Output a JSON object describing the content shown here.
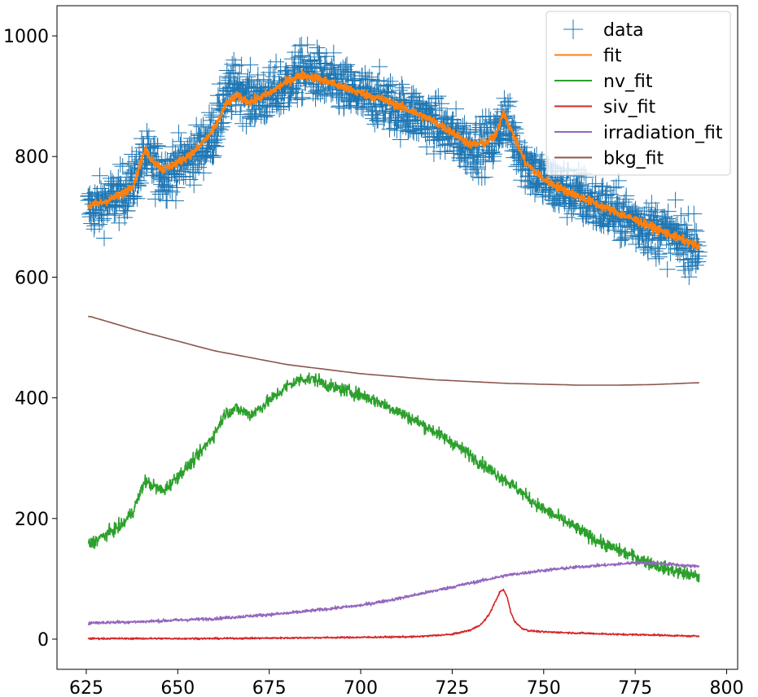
{
  "chart_data": {
    "type": "line",
    "title": "",
    "xlabel": "",
    "ylabel": "",
    "xlim": [
      617,
      803
    ],
    "ylim": [
      -50,
      1050
    ],
    "x_ticks": [
      625,
      650,
      675,
      700,
      725,
      750,
      775,
      800
    ],
    "y_ticks": [
      0,
      200,
      400,
      600,
      800,
      1000
    ],
    "grid": false,
    "legend_position": "top-right",
    "x_range": [
      625.5,
      792.5
    ],
    "series": [
      {
        "name": "data",
        "style": "plus-markers",
        "color": "#1f77b4",
        "x": [
          626,
          630,
          635,
          638,
          641,
          643,
          646,
          650,
          655,
          660,
          663,
          666,
          670,
          675,
          680,
          684,
          688,
          692,
          696,
          700,
          705,
          710,
          715,
          720,
          725,
          730,
          734,
          737,
          739,
          741,
          745,
          750,
          755,
          760,
          765,
          770,
          775,
          780,
          785,
          790,
          792
        ],
        "y": [
          712,
          722,
          740,
          760,
          800,
          790,
          770,
          785,
          805,
          840,
          895,
          920,
          895,
          900,
          920,
          940,
          935,
          920,
          910,
          900,
          895,
          880,
          870,
          855,
          835,
          815,
          820,
          830,
          870,
          840,
          790,
          760,
          745,
          735,
          718,
          705,
          692,
          680,
          667,
          655,
          650
        ]
      },
      {
        "name": "fit",
        "style": "line",
        "color": "#ff7f0e",
        "x": [
          626,
          630,
          635,
          638,
          641,
          643,
          646,
          650,
          655,
          660,
          663,
          666,
          670,
          675,
          680,
          684,
          688,
          692,
          696,
          700,
          705,
          710,
          715,
          720,
          725,
          730,
          734,
          737,
          739,
          741,
          745,
          750,
          755,
          760,
          765,
          770,
          775,
          780,
          785,
          790,
          792
        ],
        "y": [
          718,
          725,
          738,
          755,
          810,
          795,
          778,
          790,
          810,
          845,
          885,
          900,
          890,
          905,
          925,
          935,
          930,
          922,
          913,
          905,
          897,
          885,
          872,
          858,
          840,
          820,
          822,
          835,
          875,
          845,
          790,
          762,
          746,
          733,
          720,
          707,
          695,
          682,
          669,
          657,
          650
        ]
      },
      {
        "name": "nv_fit",
        "style": "line",
        "color": "#2ca02c",
        "x": [
          626,
          630,
          635,
          638,
          641,
          643,
          646,
          650,
          655,
          660,
          663,
          666,
          670,
          675,
          680,
          684,
          688,
          692,
          696,
          700,
          705,
          710,
          715,
          720,
          725,
          730,
          735,
          740,
          745,
          750,
          755,
          760,
          765,
          770,
          775,
          780,
          785,
          790,
          792
        ],
        "y": [
          158,
          172,
          190,
          215,
          262,
          255,
          245,
          270,
          300,
          340,
          375,
          382,
          372,
          395,
          420,
          432,
          430,
          418,
          412,
          405,
          393,
          378,
          362,
          345,
          326,
          305,
          282,
          262,
          238,
          215,
          198,
          180,
          162,
          148,
          136,
          124,
          114,
          107,
          103
        ]
      },
      {
        "name": "siv_fit",
        "style": "line",
        "color": "#d62728",
        "x": [
          626,
          640,
          660,
          680,
          700,
          715,
          725,
          730,
          733,
          735,
          737,
          738,
          739,
          740,
          741,
          742,
          744,
          746,
          750,
          760,
          770,
          780,
          790,
          792
        ],
        "y": [
          1,
          1,
          1,
          2,
          3,
          4,
          8,
          15,
          25,
          40,
          65,
          78,
          82,
          70,
          45,
          30,
          18,
          14,
          12,
          10,
          8,
          7,
          5,
          5
        ]
      },
      {
        "name": "irradiation_fit",
        "style": "line",
        "color": "#9467bd",
        "x": [
          626,
          640,
          660,
          680,
          700,
          710,
          720,
          730,
          740,
          750,
          760,
          770,
          775,
          780,
          785,
          790,
          792
        ],
        "y": [
          27,
          29,
          34,
          43,
          56,
          67,
          80,
          93,
          106,
          114,
          120,
          124,
          127,
          126,
          124,
          121,
          121
        ]
      },
      {
        "name": "bkg_fit",
        "style": "line",
        "color": "#8c564b",
        "x": [
          626,
          640,
          660,
          680,
          700,
          720,
          740,
          760,
          770,
          780,
          792
        ],
        "y": [
          535,
          510,
          478,
          455,
          440,
          430,
          424,
          421,
          421,
          422,
          425
        ]
      }
    ]
  }
}
